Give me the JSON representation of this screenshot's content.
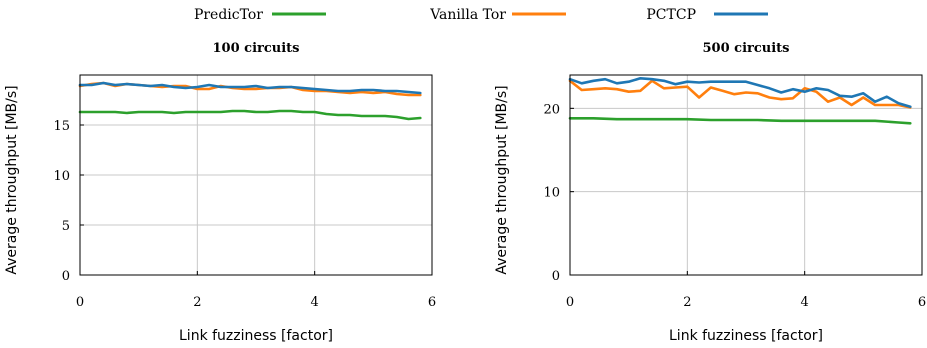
{
  "legend": {
    "items": [
      {
        "label": "PredicTor",
        "color": "#2ca02c"
      },
      {
        "label": "Vanilla Tor",
        "color": "#ff7f0e"
      },
      {
        "label": "PCTCP",
        "color": "#1f77b4"
      }
    ]
  },
  "chart_data": [
    {
      "type": "line",
      "title": "100 circuits",
      "xlabel": "Link fuzziness [factor]",
      "ylabel": "Average throughput [MB/s]",
      "xlim": [
        0,
        6
      ],
      "ylim": [
        0,
        20
      ],
      "xticks": [
        0,
        2,
        4,
        6
      ],
      "yticks": [
        0,
        5,
        10,
        15
      ],
      "grid": true,
      "series": [
        {
          "name": "PredicTor",
          "color": "#2ca02c",
          "x": [
            0,
            0.2,
            0.4,
            0.6,
            0.8,
            1.0,
            1.2,
            1.4,
            1.6,
            1.8,
            2.0,
            2.2,
            2.4,
            2.6,
            2.8,
            3.0,
            3.2,
            3.4,
            3.6,
            3.8,
            4.0,
            4.2,
            4.4,
            4.6,
            4.8,
            5.0,
            5.2,
            5.4,
            5.6,
            5.8
          ],
          "y": [
            16.3,
            16.3,
            16.3,
            16.3,
            16.2,
            16.3,
            16.3,
            16.3,
            16.2,
            16.3,
            16.3,
            16.3,
            16.3,
            16.4,
            16.4,
            16.3,
            16.3,
            16.4,
            16.4,
            16.3,
            16.3,
            16.1,
            16.0,
            16.0,
            15.9,
            15.9,
            15.9,
            15.8,
            15.6,
            15.7
          ]
        },
        {
          "name": "Vanilla Tor",
          "color": "#ff7f0e",
          "x": [
            0,
            0.2,
            0.4,
            0.6,
            0.8,
            1.0,
            1.2,
            1.4,
            1.6,
            1.8,
            2.0,
            2.2,
            2.4,
            2.6,
            2.8,
            3.0,
            3.2,
            3.4,
            3.6,
            3.8,
            4.0,
            4.2,
            4.4,
            4.6,
            4.8,
            5.0,
            5.2,
            5.4,
            5.6,
            5.8
          ],
          "y": [
            18.9,
            19.1,
            19.2,
            18.9,
            19.1,
            19.0,
            18.9,
            18.8,
            18.9,
            18.9,
            18.6,
            18.6,
            18.9,
            18.7,
            18.6,
            18.6,
            18.7,
            18.7,
            18.8,
            18.5,
            18.4,
            18.4,
            18.3,
            18.2,
            18.3,
            18.2,
            18.3,
            18.1,
            18.0,
            18.0
          ]
        },
        {
          "name": "PCTCP",
          "color": "#1f77b4",
          "x": [
            0,
            0.2,
            0.4,
            0.6,
            0.8,
            1.0,
            1.2,
            1.4,
            1.6,
            1.8,
            2.0,
            2.2,
            2.4,
            2.6,
            2.8,
            3.0,
            3.2,
            3.4,
            3.6,
            3.8,
            4.0,
            4.2,
            4.4,
            4.6,
            4.8,
            5.0,
            5.2,
            5.4,
            5.6,
            5.8
          ],
          "y": [
            19.0,
            19.0,
            19.2,
            19.0,
            19.1,
            19.0,
            18.9,
            19.0,
            18.8,
            18.7,
            18.8,
            19.0,
            18.8,
            18.8,
            18.8,
            18.9,
            18.7,
            18.8,
            18.8,
            18.7,
            18.6,
            18.5,
            18.4,
            18.4,
            18.5,
            18.5,
            18.4,
            18.4,
            18.3,
            18.2
          ]
        }
      ]
    },
    {
      "type": "line",
      "title": "500 circuits",
      "xlabel": "Link fuzziness [factor]",
      "ylabel": "Average throughput [MB/s]",
      "xlim": [
        0,
        6
      ],
      "ylim": [
        0,
        24
      ],
      "xticks": [
        0,
        2,
        4,
        6
      ],
      "yticks": [
        0,
        10,
        20
      ],
      "grid": true,
      "series": [
        {
          "name": "PredicTor",
          "color": "#2ca02c",
          "x": [
            0,
            0.4,
            0.8,
            1.2,
            1.6,
            2.0,
            2.4,
            2.8,
            3.2,
            3.6,
            4.0,
            4.4,
            4.8,
            5.2,
            5.6,
            5.8
          ],
          "y": [
            18.8,
            18.8,
            18.7,
            18.7,
            18.7,
            18.7,
            18.6,
            18.6,
            18.6,
            18.5,
            18.5,
            18.5,
            18.5,
            18.5,
            18.3,
            18.2
          ]
        },
        {
          "name": "Vanilla Tor",
          "color": "#ff7f0e",
          "x": [
            0,
            0.2,
            0.4,
            0.6,
            0.8,
            1.0,
            1.2,
            1.4,
            1.6,
            1.8,
            2.0,
            2.2,
            2.4,
            2.6,
            2.8,
            3.0,
            3.2,
            3.4,
            3.6,
            3.8,
            4.0,
            4.2,
            4.4,
            4.6,
            4.8,
            5.0,
            5.2,
            5.4,
            5.6,
            5.8
          ],
          "y": [
            23.3,
            22.2,
            22.3,
            22.4,
            22.3,
            22.0,
            22.1,
            23.3,
            22.4,
            22.5,
            22.6,
            21.3,
            22.5,
            22.1,
            21.7,
            21.9,
            21.8,
            21.3,
            21.1,
            21.2,
            22.4,
            22.0,
            20.8,
            21.3,
            20.4,
            21.3,
            20.4,
            20.4,
            20.4,
            20.1
          ]
        },
        {
          "name": "PCTCP",
          "color": "#1f77b4",
          "x": [
            0,
            0.2,
            0.4,
            0.6,
            0.8,
            1.0,
            1.2,
            1.4,
            1.6,
            1.8,
            2.0,
            2.2,
            2.4,
            2.6,
            2.8,
            3.0,
            3.2,
            3.4,
            3.6,
            3.8,
            4.0,
            4.2,
            4.4,
            4.6,
            4.8,
            5.0,
            5.2,
            5.4,
            5.6,
            5.8
          ],
          "y": [
            23.5,
            23.0,
            23.3,
            23.5,
            23.0,
            23.2,
            23.6,
            23.5,
            23.3,
            22.9,
            23.2,
            23.1,
            23.2,
            23.2,
            23.2,
            23.2,
            22.8,
            22.4,
            21.9,
            22.3,
            22.0,
            22.4,
            22.2,
            21.5,
            21.4,
            21.8,
            20.8,
            21.4,
            20.6,
            20.2
          ]
        }
      ]
    }
  ]
}
